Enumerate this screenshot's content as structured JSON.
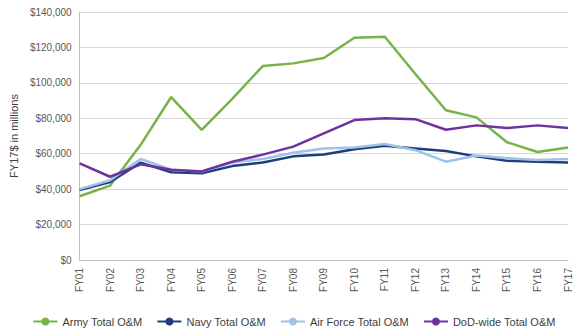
{
  "chart_data": {
    "type": "line",
    "y_label": "FY17$ in millions",
    "categories": [
      "FY01",
      "FY02",
      "FY03",
      "FY04",
      "FY05",
      "FY06",
      "FY07",
      "FY08",
      "FY09",
      "FY10",
      "FY11",
      "FY12",
      "FY13",
      "FY14",
      "FY15",
      "FY16",
      "FY17"
    ],
    "series": [
      {
        "name": "Army Total O&M",
        "color": "#77b347",
        "values": [
          36000,
          42000,
          65000,
          92000,
          73500,
          91000,
          109500,
          111000,
          114000,
          125500,
          126000,
          105000,
          84500,
          80500,
          66500,
          61000,
          63500
        ]
      },
      {
        "name": "Navy Total O&M",
        "color": "#1f3d7a",
        "values": [
          39500,
          44000,
          55000,
          49500,
          49000,
          53000,
          55000,
          58500,
          59500,
          62500,
          64500,
          63000,
          61500,
          58500,
          56000,
          55500,
          55000
        ]
      },
      {
        "name": "Air Force Total O&M",
        "color": "#9dc3e6",
        "values": [
          40000,
          45000,
          57000,
          51000,
          50000,
          55000,
          57000,
          60500,
          63000,
          63500,
          65500,
          62000,
          55500,
          59000,
          57500,
          56500,
          57000
        ]
      },
      {
        "name": "DoD-wide Total O&M",
        "color": "#7030a0",
        "values": [
          54500,
          47000,
          54000,
          51000,
          50000,
          55500,
          59500,
          64000,
          71500,
          79000,
          80000,
          79500,
          73500,
          76000,
          74500,
          76000,
          74500
        ]
      }
    ],
    "ylim": [
      0,
      140000
    ],
    "yticks": [
      {
        "value": 0,
        "label": "$0"
      },
      {
        "value": 20000,
        "label": "$20,000"
      },
      {
        "value": 40000,
        "label": "$40,000"
      },
      {
        "value": 60000,
        "label": "$60,000"
      },
      {
        "value": 80000,
        "label": "$80,000"
      },
      {
        "value": 100000,
        "label": "$100,000"
      },
      {
        "value": 120000,
        "label": "$120,000"
      },
      {
        "value": 140000,
        "label": "$140,000"
      }
    ],
    "grid": true,
    "legend": "bottom"
  }
}
